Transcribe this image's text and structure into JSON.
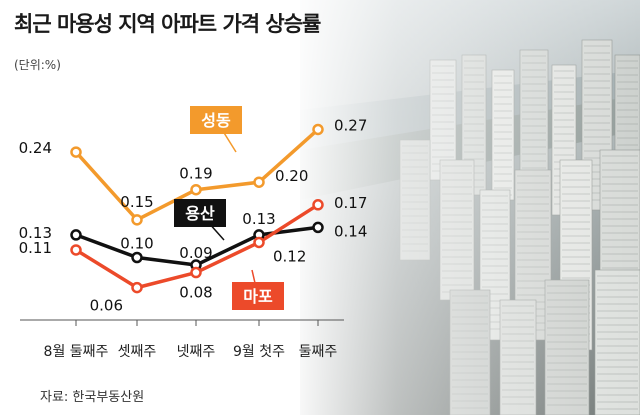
{
  "title": "최근 마용성 지역 아파트 가격 상승률",
  "unit": "(단위:%)",
  "source": "자료: 한국부동산원",
  "chart_data": {
    "type": "line",
    "title": "최근 마용성 지역 아파트 가격 상승률",
    "unit": "(단위:%)",
    "categories": [
      "8월 둘째주",
      "셋째주",
      "넷째주",
      "9월 첫주",
      "둘째주"
    ],
    "ylim": [
      0,
      0.3
    ],
    "grid": false,
    "legend": "inline labels",
    "series": [
      {
        "name": "성동",
        "color": "#f39a2c",
        "values": [
          0.24,
          0.15,
          0.19,
          0.2,
          0.27
        ],
        "label_text": [
          "0.24",
          "0.15",
          "0.19",
          "0.20",
          "0.27"
        ]
      },
      {
        "name": "용산",
        "color": "#111111",
        "values": [
          0.13,
          0.1,
          0.09,
          0.13,
          0.14
        ],
        "label_text": [
          "0.13",
          "0.10",
          "0.09",
          "0.13",
          "0.14"
        ]
      },
      {
        "name": "마포",
        "color": "#ec4a2a",
        "values": [
          0.11,
          0.06,
          0.08,
          0.12,
          0.17
        ],
        "label_text": [
          "0.11",
          "0.06",
          "0.08",
          "0.12",
          "0.17"
        ]
      }
    ]
  }
}
